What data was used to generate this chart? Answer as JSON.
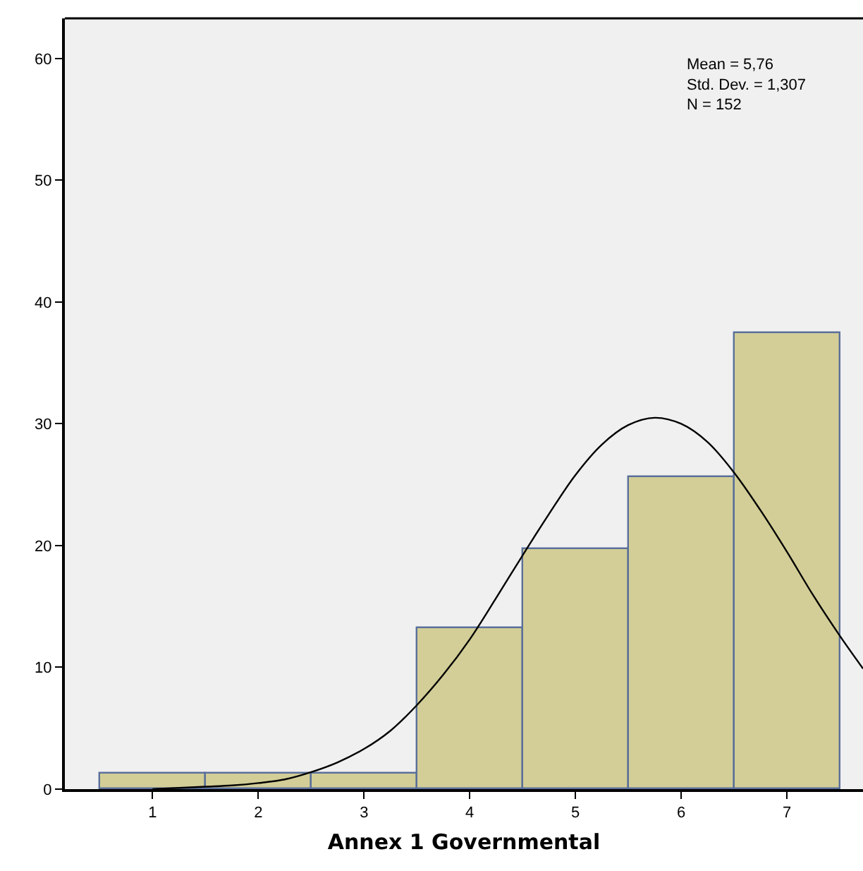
{
  "chart_data": {
    "type": "histogram",
    "xlabel": "Annex 1 Governmental",
    "annotations": [
      "Mean = 5,76\nStd. Dev. = 1,307\nN = 152"
    ],
    "bins": [
      0.5,
      1.5,
      2.5,
      3.5,
      4.5,
      5.5,
      6.5,
      7.5
    ],
    "values": [
      1.3,
      1.3,
      1.3,
      13.2,
      19.7,
      25.6,
      37.5
    ],
    "color": "#d3ce97",
    "series": [
      {
        "type": "line",
        "color": "#000000",
        "x": [
          1,
          1.25,
          1.5,
          1.75,
          2,
          2.25,
          2.5,
          2.75,
          3,
          3.25,
          3.5,
          3.75,
          4,
          4.25,
          4.5,
          4.75,
          5,
          5.25,
          5.5,
          5.75,
          6,
          6.25,
          6.5,
          6.75,
          7,
          7.25,
          7.5,
          7.72
        ],
        "values": [
          0.0,
          0.1,
          0.2,
          0.3,
          0.5,
          0.8,
          1.4,
          2.2,
          3.3,
          4.8,
          6.9,
          9.4,
          12.3,
          15.7,
          19.2,
          22.6,
          25.8,
          28.3,
          29.9,
          30.5,
          30.0,
          28.5,
          26.0,
          22.9,
          19.5,
          15.9,
          12.6,
          9.9
        ]
      }
    ],
    "xlim": [
      0.17,
      7.72
    ],
    "xticks": [
      1,
      2,
      3,
      4,
      5,
      6,
      7
    ],
    "ylim": [
      0,
      63.3
    ],
    "yticks": [
      0,
      10,
      20,
      30,
      40,
      50,
      60
    ],
    "marker": "none",
    "line_style": "solid"
  }
}
